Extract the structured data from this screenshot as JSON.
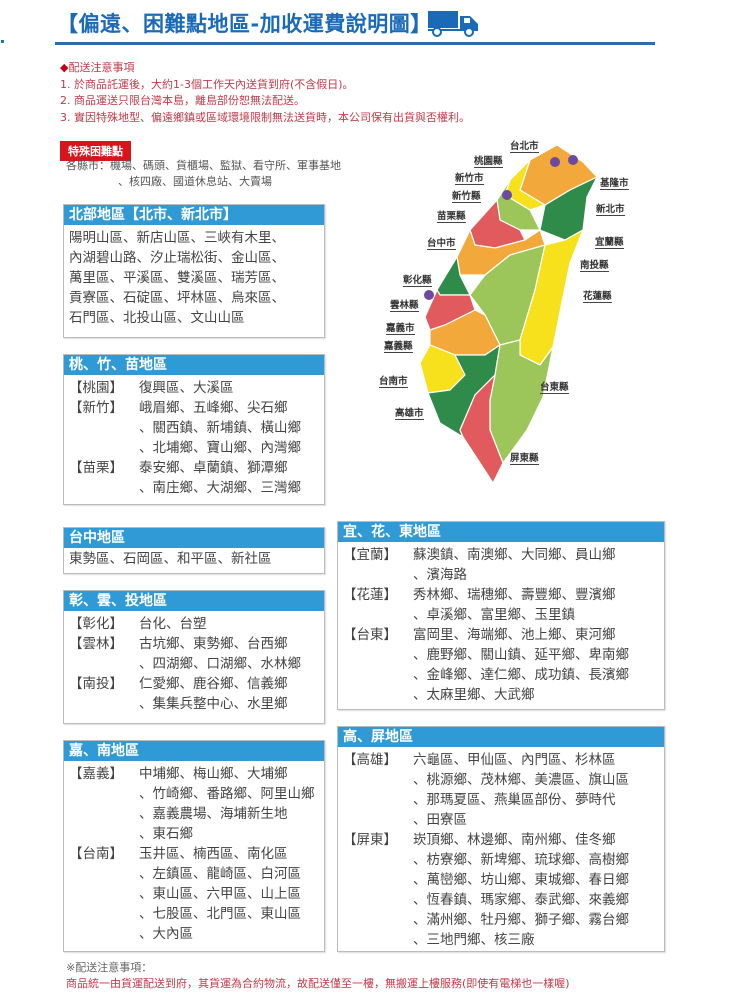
{
  "header": {
    "title": "【偏遠、困難點地區-加收運費說明圖】",
    "brand_color": "#1a6ab8"
  },
  "notice": {
    "heading": "配送注意事項",
    "items": [
      "1. 於商品託運後，大約1-3個工作天內送貨到府(不含假日)。",
      "2. 商品運送只限台灣本島，離島部份恕無法配送。",
      "3. 實因特殊地型、偏遠鄉鎮或區域環境限制無法送貨時，本公司保有出貨與否權利。"
    ]
  },
  "special": {
    "label": "特殊困難點",
    "lines": [
      "各縣市：機場、碼頭、貨櫃場、監獄、看守所、軍事基地",
      "、核四廠、國道休息站、大賣場"
    ]
  },
  "boxes": {
    "north": {
      "title": "北部地區【北市、新北市】",
      "rows": [
        {
          "tag": "",
          "lines": [
            "陽明山區、新店山區、三峽有木里、",
            "內湖碧山路、汐止瑞松街、金山區、",
            "萬里區、平溪區、雙溪區、瑞芳區、",
            "貢寮區、石碇區、坪林區、烏來區、",
            "石門區、北投山區、文山山區"
          ]
        }
      ]
    },
    "tzm": {
      "title": "桃、竹、苗地區",
      "rows": [
        {
          "tag": "【桃園】",
          "lines": [
            "復興區、大溪區"
          ]
        },
        {
          "tag": "【新竹】",
          "lines": [
            "峨眉鄉、五峰鄉、尖石鄉",
            "、關西鎮、新埔鎮、橫山鄉",
            "、北埔鄉、寶山鄉、內灣鄉"
          ]
        },
        {
          "tag": "【苗栗】",
          "lines": [
            "泰安鄉、卓蘭鎮、獅潭鄉",
            "、南庄鄉、大湖鄉、三灣鄉"
          ]
        }
      ]
    },
    "taichung": {
      "title": "台中地區",
      "rows": [
        {
          "tag": "",
          "lines": [
            "東勢區、石岡區、和平區、新社區"
          ]
        }
      ]
    },
    "cyt": {
      "title": "彰、雲、投地區",
      "rows": [
        {
          "tag": "【彰化】",
          "lines": [
            "台化、台塑"
          ]
        },
        {
          "tag": "【雲林】",
          "lines": [
            "古坑鄉、東勢鄉、台西鄉",
            "、四湖鄉、口湖鄉、水林鄉"
          ]
        },
        {
          "tag": "【南投】",
          "lines": [
            "仁愛鄉、鹿谷鄉、信義鄉",
            "、集集兵整中心、水里鄉"
          ]
        }
      ]
    },
    "cn": {
      "title": "嘉、南地區",
      "rows": [
        {
          "tag": "【嘉義】",
          "lines": [
            "中埔鄉、梅山鄉、大埔鄉",
            "、竹崎鄉、番路鄉、阿里山鄉",
            "、嘉義農場、海埔新生地",
            "、東石鄉"
          ]
        },
        {
          "tag": "【台南】",
          "lines": [
            "玉井區、楠西區、南化區",
            "、左鎮區、龍崎區、白河區",
            "、東山區、六甲區、山上區",
            "、七股區、北門區、東山區",
            "、大內區"
          ]
        }
      ]
    },
    "yhd": {
      "title": "宜、花、東地區",
      "rows": [
        {
          "tag": "【宜蘭】",
          "lines": [
            "蘇澳鎮、南澳鄉、大同鄉、員山鄉",
            "、濱海路"
          ]
        },
        {
          "tag": "【花蓮】",
          "lines": [
            "秀林鄉、瑞穗鄉、壽豐鄉、豐濱鄉",
            "、卓溪鄉、富里鄉、玉里鎮"
          ]
        },
        {
          "tag": "【台東】",
          "lines": [
            "富岡里、海端鄉、池上鄉、東河鄉",
            "、鹿野鄉、關山鎮、延平鄉、卑南鄉",
            "、金峰鄉、達仁鄉、成功鎮、長濱鄉",
            "、太麻里鄉、大武鄉"
          ]
        }
      ]
    },
    "kp": {
      "title": "高、屏地區",
      "rows": [
        {
          "tag": "【高雄】",
          "lines": [
            "六龜區、甲仙區、內門區、杉林區",
            "、桃源鄉、茂林鄉、美濃區、旗山區",
            "、那瑪夏區、燕巢區部份、夢時代",
            "、田寮區"
          ]
        },
        {
          "tag": "【屏東】",
          "lines": [
            "崁頂鄉、林邊鄉、南州鄉、佳冬鄉",
            "、枋寮鄉、新埤鄉、琉球鄉、高樹鄉",
            "、萬巒鄉、坊山鄉、東城鄉、春日鄉",
            "、恆春鎮、瑪家鄉、泰武鄉、來義鄉",
            "、滿州鄉、牡丹鄉、獅子鄉、霧台鄉",
            "、三地門鄉、核三廠"
          ]
        }
      ]
    }
  },
  "map": {
    "labels": [
      "台北市",
      "桃園縣",
      "新竹市",
      "新竹縣",
      "苗栗縣",
      "台中市",
      "彰化縣",
      "雲林縣",
      "嘉義市",
      "嘉義縣",
      "台南市",
      "高雄市",
      "基隆市",
      "新北市",
      "宜蘭縣",
      "南投縣",
      "花蓮縣",
      "台東縣",
      "屏東縣"
    ],
    "colors": {
      "green": "#2e8b4a",
      "light_green": "#9cc55a",
      "yellow": "#f7e11c",
      "orange": "#f2a83a",
      "red": "#e05a5e",
      "purple": "#6b4aa0"
    }
  },
  "footer": {
    "heading": "※配送注意事項：",
    "text": "商品統一由貨運配送到府，其貨運為合約物流，故配送僅至一樓，無搬運上樓服務(即使有電梯也一樣喔)"
  }
}
